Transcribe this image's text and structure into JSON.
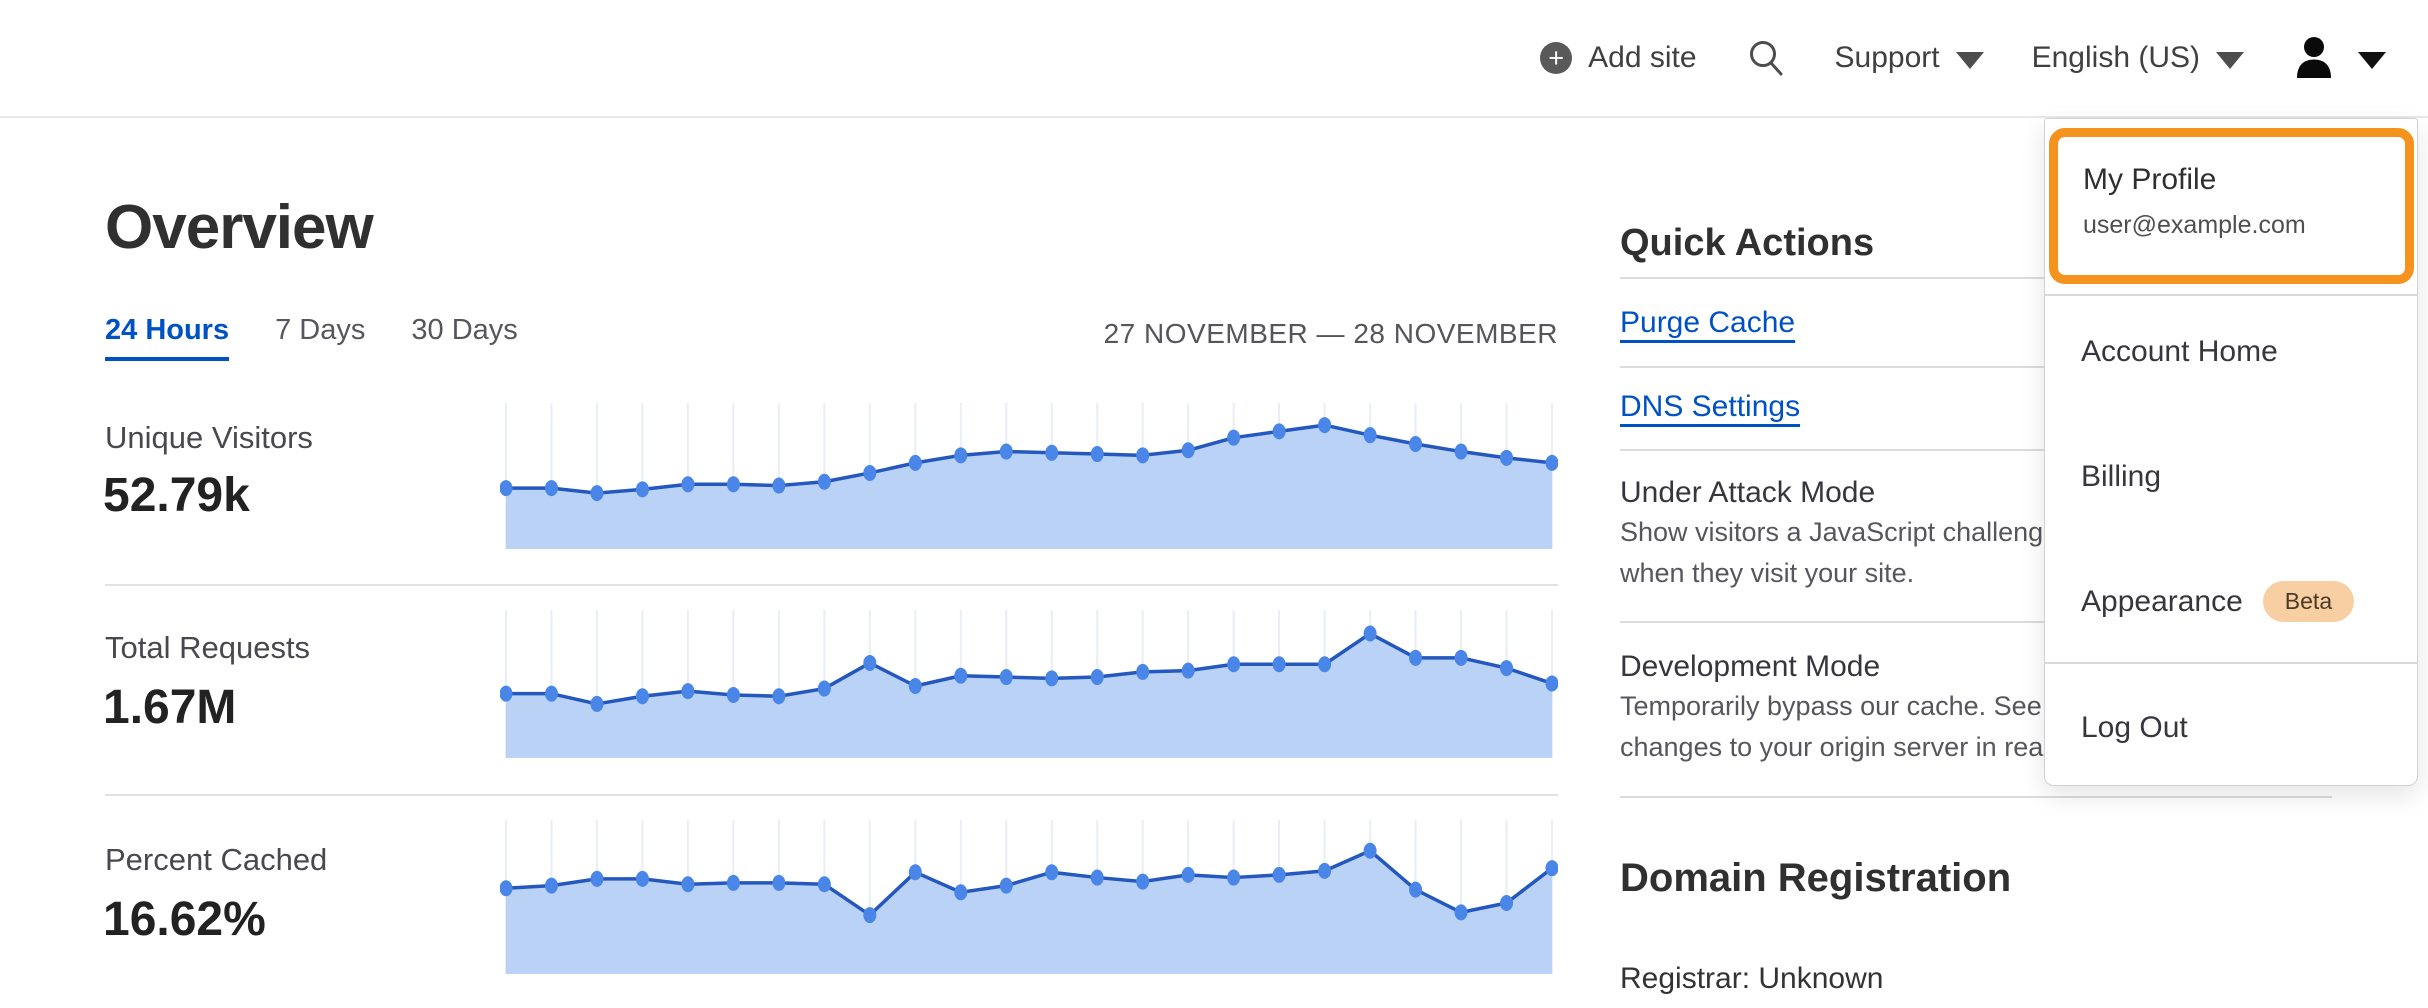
{
  "colors": {
    "accent_orange": "#f6921e",
    "link_blue": "#0051c3",
    "chart_line": "#2458be",
    "chart_dot": "#4a86e8",
    "chart_fill": "#b9d2f6",
    "gridline": "#e9eef5",
    "beta_badge_bg": "#f7cfa3"
  },
  "header": {
    "add_site": "Add site",
    "support": "Support",
    "language": "English (US)"
  },
  "overview": {
    "title": "Overview",
    "tabs": [
      {
        "label": "24 Hours",
        "active": true
      },
      {
        "label": "7 Days",
        "active": false
      },
      {
        "label": "30 Days",
        "active": false
      }
    ],
    "date_range": "27 NOVEMBER — 28 NOVEMBER"
  },
  "chart_data": [
    {
      "type": "area",
      "label": "Unique Visitors",
      "display_value": "52.79k",
      "x_range": "27 NOVEMBER — 28 NOVEMBER",
      "grid": true,
      "values": [
        42,
        42,
        38,
        41,
        45,
        45,
        44,
        47,
        54,
        62,
        68,
        71,
        70,
        69,
        68,
        72,
        82,
        87,
        92,
        84,
        77,
        71,
        66,
        62
      ]
    },
    {
      "type": "area",
      "label": "Total Requests",
      "display_value": "1.67M",
      "x_range": "27 NOVEMBER — 28 NOVEMBER",
      "grid": true,
      "values": [
        44,
        44,
        36,
        42,
        46,
        43,
        42,
        48,
        68,
        50,
        58,
        57,
        56,
        57,
        61,
        62,
        67,
        67,
        67,
        91,
        72,
        72,
        64,
        52
      ]
    },
    {
      "type": "area",
      "label": "Percent Cached",
      "display_value": "16.62%",
      "x_range": "27 NOVEMBER — 28 NOVEMBER",
      "grid": true,
      "values": [
        58,
        60,
        65,
        65,
        61,
        62,
        62,
        61,
        38,
        70,
        55,
        60,
        70,
        66,
        63,
        68,
        66,
        68,
        71,
        86,
        57,
        40,
        47,
        73
      ]
    }
  ],
  "quick_actions": {
    "title": "Quick Actions",
    "links": [
      {
        "label": "Purge Cache"
      },
      {
        "label": "DNS Settings"
      }
    ],
    "toggles": [
      {
        "label": "Under Attack Mode",
        "description_lines": [
          "Show visitors a JavaScript challenge",
          "when they visit your site."
        ]
      },
      {
        "label": "Development Mode",
        "description_lines": [
          "Temporarily bypass our cache. See",
          "changes to your origin server in realtime."
        ]
      }
    ]
  },
  "domain_registration": {
    "title": "Domain Registration",
    "registrar": "Registrar: Unknown"
  },
  "user_menu": {
    "profile": {
      "label": "My Profile",
      "email": "user@example.com"
    },
    "items": [
      {
        "label": "Account Home"
      },
      {
        "label": "Billing"
      },
      {
        "label": "Appearance",
        "badge": "Beta"
      },
      {
        "label": "Log Out"
      }
    ]
  }
}
